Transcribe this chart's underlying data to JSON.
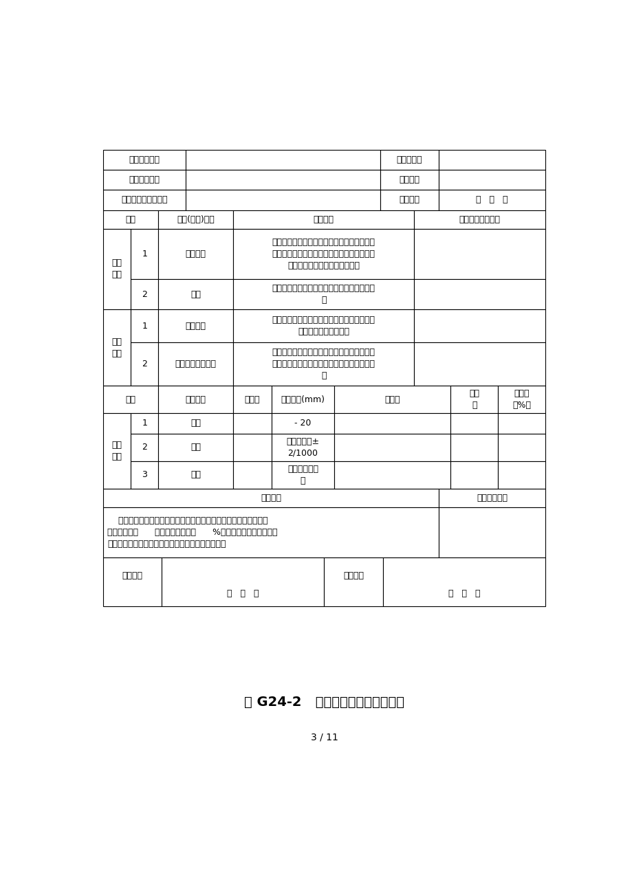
{
  "bg_color": "#ffffff",
  "title_bottom": "表 G24-2   井管安装工序质量评定表",
  "page_num": "3 / 11",
  "row1_c1": "单位工程名称",
  "row1_c3": "单元工程量",
  "row2_c1": "分部工程名称",
  "row2_c3": "施工单位",
  "row3_c1": "单元工程名称、编号",
  "row3_c3": "评定日期",
  "row3_c4": "年   月   日",
  "hdr_xc": "项次",
  "hdr_jy": "检验(检查)项目",
  "hdr_zl": "质量标准",
  "hdr_jl": "检验（检查）记录",
  "zkxm": "主控\n项目",
  "item1_num": "1",
  "item1_name": "钒井工艺",
  "item1_std": "钒进方法、冲洗介质、泥浆质量（密度、泥浆\n粘度、泥浆含沙量、胶体率）井孔防斜及事故\n预防等符合设计和规范规定要求",
  "item2_num": "2",
  "item2_name": "测井",
  "item2_std": "对井孔进行了电测，附有真实的测井综合成果\n图",
  "ybxm": "一般\n项目",
  "yb1_num": "1",
  "yb1_name": "施工准备",
  "yb1_std": "按设计孔深终孔后，疏孔、换浆和试孔作业符\n合设计和规范规定要求",
  "yb2_num": "2",
  "yb2_name": "疏孔、换浆和试孔",
  "yb2_std": "松散层中的井孔、泥浆护壁的井孔及下井管前\n校正孔径孔深和测斜等符合设计和规范规定要\n求",
  "mhdr_xc": "项次",
  "mhdr_jc": "检测项目",
  "mhdr_sj": "设计值",
  "mhdr_yx": "允许偏差(mm)",
  "mhdr_sc": "实测值",
  "mhdr_hgs": "合格\n数",
  "mhdr_hgl": "合格率\n（%）",
  "m1_num": "1",
  "m1_name": "孔径",
  "m1_tol": "- 20",
  "m2_num": "2",
  "m2_name": "孔深",
  "m2_tol": "不超过设计±\n2/1000",
  "m3_num": "3",
  "m3_name": "孔斜",
  "m3_tol": "不超过设计要\n求",
  "eval_label": "评定意见",
  "eval_right": "工序质量等级",
  "conclusion": "    主控项目检验（检查）结果全部符合质量标准要求；一般检验（检\n查项目）结果      质量标准和逐项有      %及以上的检测点合格，且\n不合格点不集中；各项报验资料应符合本标准要求。",
  "sign_sz": "施工单位",
  "sign_jl": "监理单位",
  "sign_date": "年   月   日"
}
